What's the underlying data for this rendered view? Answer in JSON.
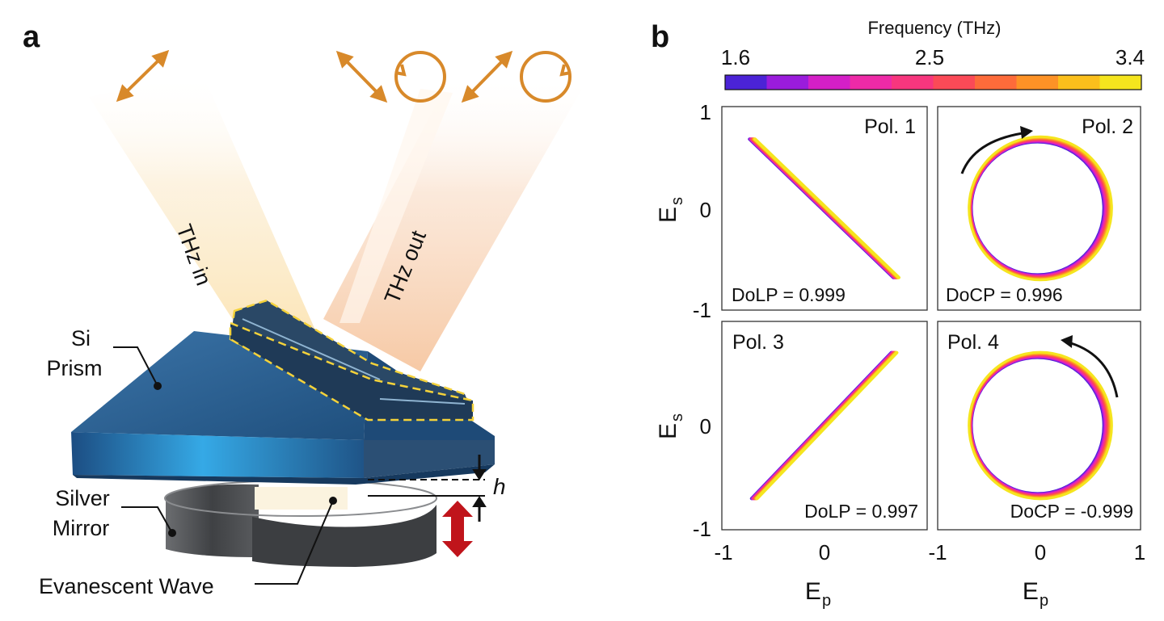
{
  "panel_a": {
    "letter": "a",
    "thz_in": "THz in",
    "thz_out": "THz out",
    "si_prism": [
      "Si",
      "Prism"
    ],
    "silver_mirror": [
      "Silver",
      "Mirror"
    ],
    "evanescent_wave": "Evanescent Wave",
    "gap_symbol": "h",
    "colors": {
      "prism": "#2a5f8f",
      "beam": "#f6c27a",
      "arrow": "#d8892a",
      "mirror": "#4d4f52",
      "motion": "#c0141b",
      "outline": "#f4d23a"
    },
    "icons": [
      "linear-polarization-arrow-icon",
      "circular-polarization-icon",
      "motion-double-arrow-icon"
    ]
  },
  "panel_b": {
    "letter": "b",
    "colorbar": {
      "title": "Frequency (THz)",
      "ticks": [
        "1.6",
        "2.5",
        "3.4"
      ],
      "range": [
        1.6,
        3.4
      ],
      "colors": [
        "#4b23d6",
        "#9a1cdc",
        "#d41fc7",
        "#ee2aa7",
        "#f7367e",
        "#fb4a57",
        "#fd6b3a",
        "#fd9226",
        "#fbbf1c",
        "#f5e51e"
      ]
    },
    "axis": {
      "xlabel": "E",
      "xlabel_sub": "p",
      "ylabel": "E",
      "ylabel_sub": "s"
    },
    "y_ticks": [
      "1",
      "0",
      "-1"
    ],
    "x_ticks": [
      "-1",
      "0",
      "1"
    ]
  },
  "chart_data": [
    {
      "type": "line",
      "title": "Pol. 1",
      "annotation": "DoLP = 0.999",
      "xlabel": "Ep",
      "ylabel": "Es",
      "xlim": [
        -1,
        1
      ],
      "ylim": [
        -1,
        1
      ],
      "x": [
        -0.7,
        0.7
      ],
      "y": [
        0.68,
        -0.68
      ],
      "shape": "linear"
    },
    {
      "type": "line",
      "title": "Pol. 2",
      "annotation": "DoCP = 0.996",
      "xlabel": "Ep",
      "ylabel": "Es",
      "xlim": [
        -1,
        1
      ],
      "ylim": [
        -1,
        1
      ],
      "center": [
        0,
        0
      ],
      "radius": 0.68,
      "shape": "circle",
      "handedness": "clockwise"
    },
    {
      "type": "line",
      "title": "Pol. 3",
      "annotation": "DoLP = 0.997",
      "xlabel": "Ep",
      "ylabel": "Es",
      "xlim": [
        -1,
        1
      ],
      "ylim": [
        -1,
        1
      ],
      "x": [
        -0.68,
        0.68
      ],
      "y": [
        -0.7,
        0.7
      ],
      "shape": "linear"
    },
    {
      "type": "line",
      "title": "Pol. 4",
      "annotation": "DoCP = -0.999",
      "xlabel": "Ep",
      "ylabel": "Es",
      "xlim": [
        -1,
        1
      ],
      "ylim": [
        -1,
        1
      ],
      "center": [
        0,
        0
      ],
      "radius": 0.68,
      "shape": "circle",
      "handedness": "counterclockwise"
    }
  ]
}
